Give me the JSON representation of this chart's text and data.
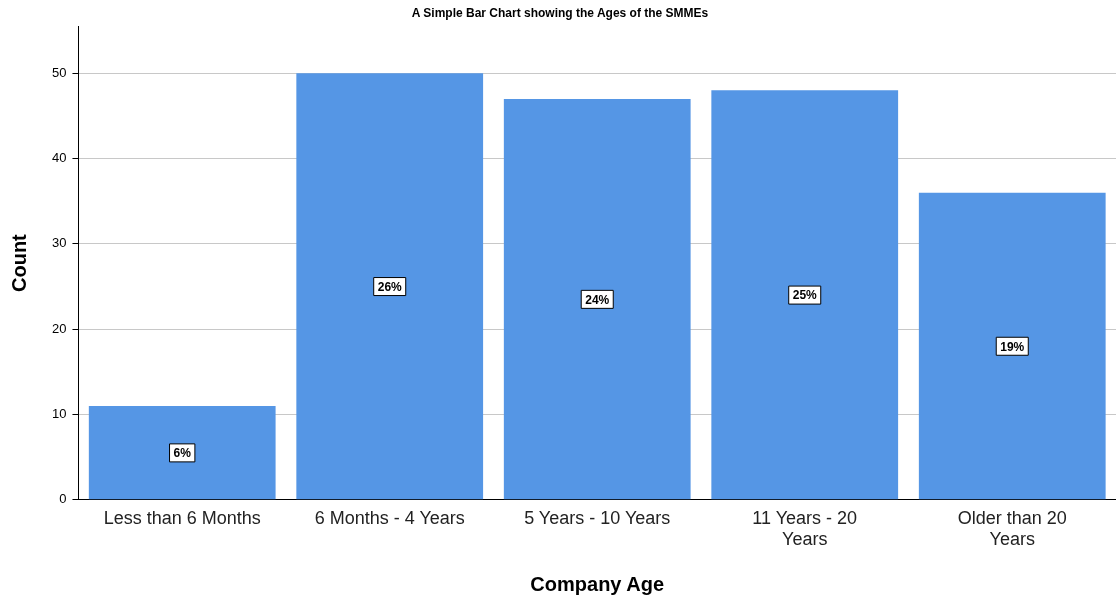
{
  "chart_data": {
    "type": "bar",
    "title": "A Simple Bar Chart showing the Ages of the SMMEs",
    "xlabel": "Company Age",
    "ylabel": "Count",
    "categories": [
      "Less than 6 Months",
      "6 Months - 4 Years",
      "5 Years - 10 Years",
      "11 Years - 20 Years",
      "Older than 20 Years"
    ],
    "values": [
      11,
      50,
      47,
      48,
      36
    ],
    "annotations": [
      {
        "text": "6%",
        "x": "Less than 6 Months",
        "y": 5.5
      },
      {
        "text": "26%",
        "x": "6 Months - 4 Years",
        "y": 25
      },
      {
        "text": "24%",
        "x": "5 Years - 10 Years",
        "y": 23.5
      },
      {
        "text": "25%",
        "x": "11 Years - 20 Years",
        "y": 24
      },
      {
        "text": "19%",
        "x": "Older than 20 Years",
        "y": 18
      }
    ],
    "color": "#5596e5",
    "ylim": [
      0,
      55.5
    ],
    "yticks": [
      0,
      10,
      20,
      30,
      40,
      50
    ],
    "grid": "y",
    "legend": false
  }
}
